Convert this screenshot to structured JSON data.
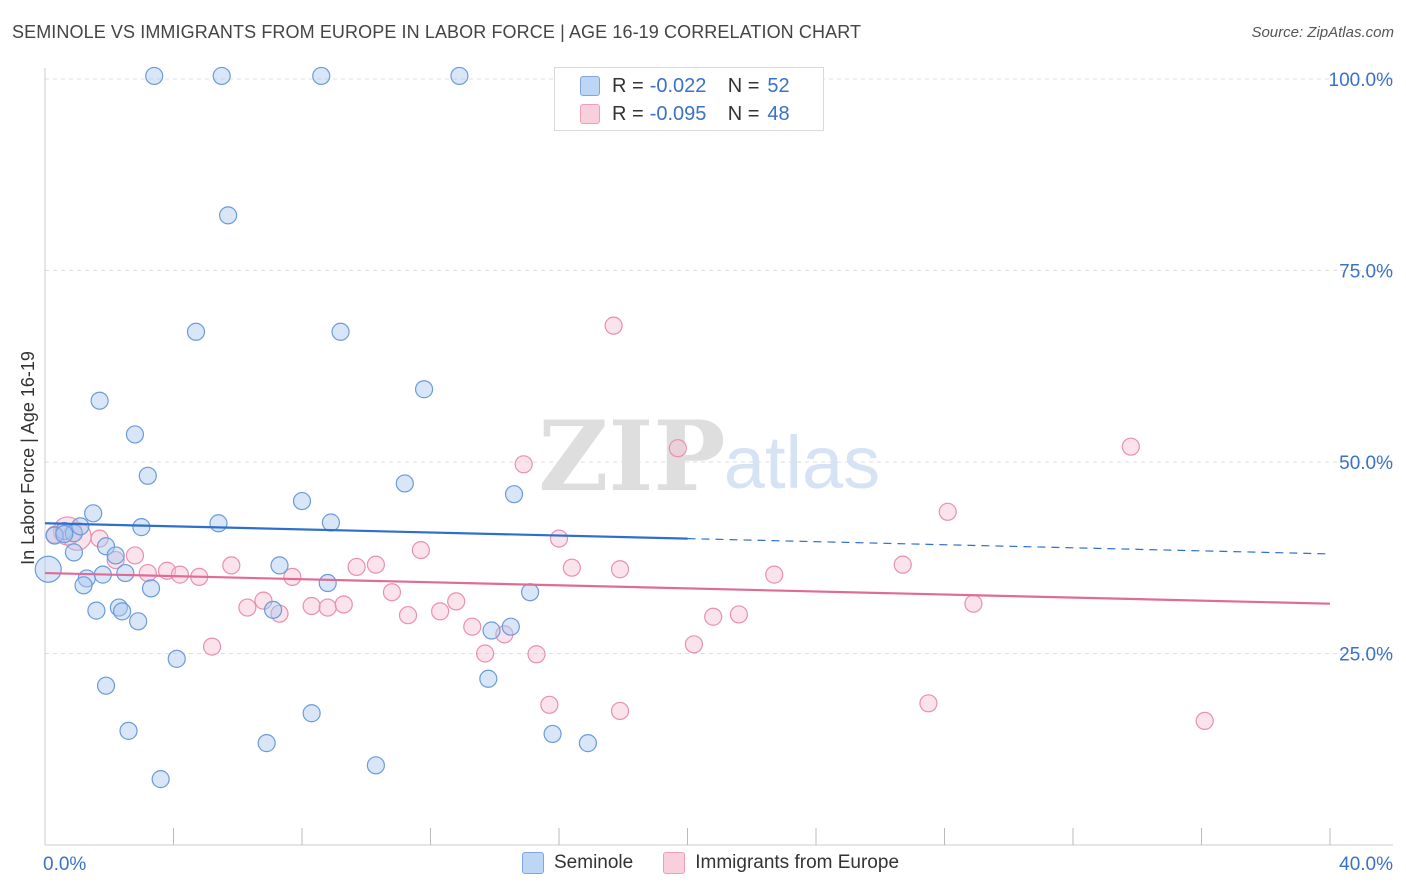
{
  "title": "SEMINOLE VS IMMIGRANTS FROM EUROPE IN LABOR FORCE | AGE 16-19 CORRELATION CHART",
  "source": "Source: ZipAtlas.com",
  "watermark": {
    "zip": "ZIP",
    "atlas": "atlas"
  },
  "colors": {
    "blue_fill": "#a9c8ef",
    "blue_stroke": "#6b9bdc",
    "blue_line": "#2e6fcc",
    "pink_fill": "#f6c1d2",
    "pink_stroke": "#e890ad",
    "pink_line": "#e06b97",
    "value_text": "#3a72c8",
    "grid": "#dddddd"
  },
  "legend_top": [
    {
      "r_label": "R =",
      "r_value": "-0.022",
      "n_label": "N =",
      "n_value": "52",
      "series": "Seminole"
    },
    {
      "r_label": "R =",
      "r_value": "-0.095",
      "n_label": "N =",
      "n_value": "48",
      "series": "Immigrants from Europe"
    }
  ],
  "legend_bottom": [
    "Seminole",
    "Immigrants from Europe"
  ],
  "chart_data": {
    "type": "scatter",
    "title": "SEMINOLE VS IMMIGRANTS FROM EUROPE IN LABOR FORCE | AGE 16-19 CORRELATION CHART",
    "xlabel": "",
    "ylabel": "In Labor Force | Age 16-19",
    "xlim": [
      0,
      40
    ],
    "ylim": [
      0,
      102
    ],
    "x_tick_labels": [
      {
        "x": 0,
        "label": "0.0%"
      },
      {
        "x": 40,
        "label": "40.0%"
      }
    ],
    "y_tick_labels": [
      {
        "y": 25,
        "label": "25.0%"
      },
      {
        "y": 50,
        "label": "50.0%"
      },
      {
        "y": 75,
        "label": "75.0%"
      },
      {
        "y": 100,
        "label": "100.0%"
      }
    ],
    "series": [
      {
        "name": "Seminole",
        "r": -0.022,
        "n": 52,
        "trend": {
          "x0": 0,
          "y0": 42.0,
          "x1": 20,
          "y1": 40.0,
          "x_dash_end": 40,
          "y_dash_end": 38.0
        },
        "points": [
          {
            "x": 3.4,
            "y": 100.4
          },
          {
            "x": 5.5,
            "y": 100.4
          },
          {
            "x": 8.6,
            "y": 100.4
          },
          {
            "x": 12.9,
            "y": 100.4
          },
          {
            "x": 5.7,
            "y": 82.2
          },
          {
            "x": 4.7,
            "y": 67.0
          },
          {
            "x": 9.2,
            "y": 67.0
          },
          {
            "x": 11.8,
            "y": 59.5
          },
          {
            "x": 1.7,
            "y": 58.0
          },
          {
            "x": 2.8,
            "y": 53.6
          },
          {
            "x": 3.2,
            "y": 48.2
          },
          {
            "x": 11.2,
            "y": 47.2
          },
          {
            "x": 14.6,
            "y": 45.8
          },
          {
            "x": 8.0,
            "y": 44.9
          },
          {
            "x": 1.5,
            "y": 43.3
          },
          {
            "x": 5.4,
            "y": 42.0
          },
          {
            "x": 8.9,
            "y": 42.1
          },
          {
            "x": 3.0,
            "y": 41.5
          },
          {
            "x": 0.6,
            "y": 41.0
          },
          {
            "x": 0.9,
            "y": 40.7
          },
          {
            "x": 0.3,
            "y": 40.4
          },
          {
            "x": 1.9,
            "y": 39.0
          },
          {
            "x": 0.9,
            "y": 38.2
          },
          {
            "x": 2.2,
            "y": 37.8
          },
          {
            "x": 0.1,
            "y": 36.0
          },
          {
            "x": 7.3,
            "y": 36.5
          },
          {
            "x": 1.8,
            "y": 35.3
          },
          {
            "x": 2.5,
            "y": 35.5
          },
          {
            "x": 1.3,
            "y": 34.8
          },
          {
            "x": 1.2,
            "y": 33.9
          },
          {
            "x": 8.8,
            "y": 34.2
          },
          {
            "x": 3.3,
            "y": 33.5
          },
          {
            "x": 15.1,
            "y": 33.0
          },
          {
            "x": 1.6,
            "y": 30.6
          },
          {
            "x": 2.3,
            "y": 31.0
          },
          {
            "x": 2.4,
            "y": 30.5
          },
          {
            "x": 7.1,
            "y": 30.7
          },
          {
            "x": 2.9,
            "y": 29.2
          },
          {
            "x": 13.9,
            "y": 28.0
          },
          {
            "x": 14.5,
            "y": 28.5
          },
          {
            "x": 4.1,
            "y": 24.3
          },
          {
            "x": 13.8,
            "y": 21.7
          },
          {
            "x": 1.9,
            "y": 20.8
          },
          {
            "x": 8.3,
            "y": 17.2
          },
          {
            "x": 2.6,
            "y": 14.9
          },
          {
            "x": 6.9,
            "y": 13.3
          },
          {
            "x": 15.8,
            "y": 14.5
          },
          {
            "x": 16.9,
            "y": 13.3
          },
          {
            "x": 10.3,
            "y": 10.4
          },
          {
            "x": 3.6,
            "y": 8.6
          },
          {
            "x": 0.6,
            "y": 40.6
          },
          {
            "x": 1.1,
            "y": 41.6
          }
        ]
      },
      {
        "name": "Immigrants from Europe",
        "r": -0.095,
        "n": 48,
        "trend": {
          "x0": 0,
          "y0": 35.5,
          "x1": 40,
          "y1": 31.5
        },
        "points": [
          {
            "x": 0.7,
            "y": 41.0
          },
          {
            "x": 0.3,
            "y": 40.5
          },
          {
            "x": 1.7,
            "y": 40.0
          },
          {
            "x": 2.8,
            "y": 37.8
          },
          {
            "x": 2.2,
            "y": 37.2
          },
          {
            "x": 3.2,
            "y": 35.5
          },
          {
            "x": 3.8,
            "y": 35.8
          },
          {
            "x": 4.2,
            "y": 35.3
          },
          {
            "x": 4.8,
            "y": 35.0
          },
          {
            "x": 5.8,
            "y": 36.5
          },
          {
            "x": 7.7,
            "y": 35.0
          },
          {
            "x": 9.7,
            "y": 36.3
          },
          {
            "x": 10.3,
            "y": 36.6
          },
          {
            "x": 11.7,
            "y": 38.5
          },
          {
            "x": 16.0,
            "y": 40.0
          },
          {
            "x": 16.4,
            "y": 36.2
          },
          {
            "x": 17.9,
            "y": 36.0
          },
          {
            "x": 22.7,
            "y": 35.3
          },
          {
            "x": 26.7,
            "y": 36.6
          },
          {
            "x": 28.1,
            "y": 43.5
          },
          {
            "x": 6.3,
            "y": 31.0
          },
          {
            "x": 6.8,
            "y": 31.9
          },
          {
            "x": 7.3,
            "y": 30.2
          },
          {
            "x": 8.3,
            "y": 31.2
          },
          {
            "x": 8.8,
            "y": 31.0
          },
          {
            "x": 9.3,
            "y": 31.4
          },
          {
            "x": 10.8,
            "y": 33.0
          },
          {
            "x": 11.3,
            "y": 30.0
          },
          {
            "x": 12.3,
            "y": 30.5
          },
          {
            "x": 12.8,
            "y": 31.8
          },
          {
            "x": 13.3,
            "y": 28.5
          },
          {
            "x": 14.3,
            "y": 27.5
          },
          {
            "x": 20.8,
            "y": 29.8
          },
          {
            "x": 21.6,
            "y": 30.1
          },
          {
            "x": 28.9,
            "y": 31.5
          },
          {
            "x": 5.2,
            "y": 25.9
          },
          {
            "x": 13.7,
            "y": 25.0
          },
          {
            "x": 15.3,
            "y": 24.9
          },
          {
            "x": 20.2,
            "y": 26.2
          },
          {
            "x": 15.7,
            "y": 18.3
          },
          {
            "x": 17.9,
            "y": 17.5
          },
          {
            "x": 27.5,
            "y": 18.5
          },
          {
            "x": 36.1,
            "y": 16.2
          },
          {
            "x": 14.9,
            "y": 49.7
          },
          {
            "x": 19.7,
            "y": 51.8
          },
          {
            "x": 33.8,
            "y": 52.0
          },
          {
            "x": 17.7,
            "y": 67.8
          },
          {
            "x": 1.0,
            "y": 40.3
          }
        ]
      }
    ]
  }
}
